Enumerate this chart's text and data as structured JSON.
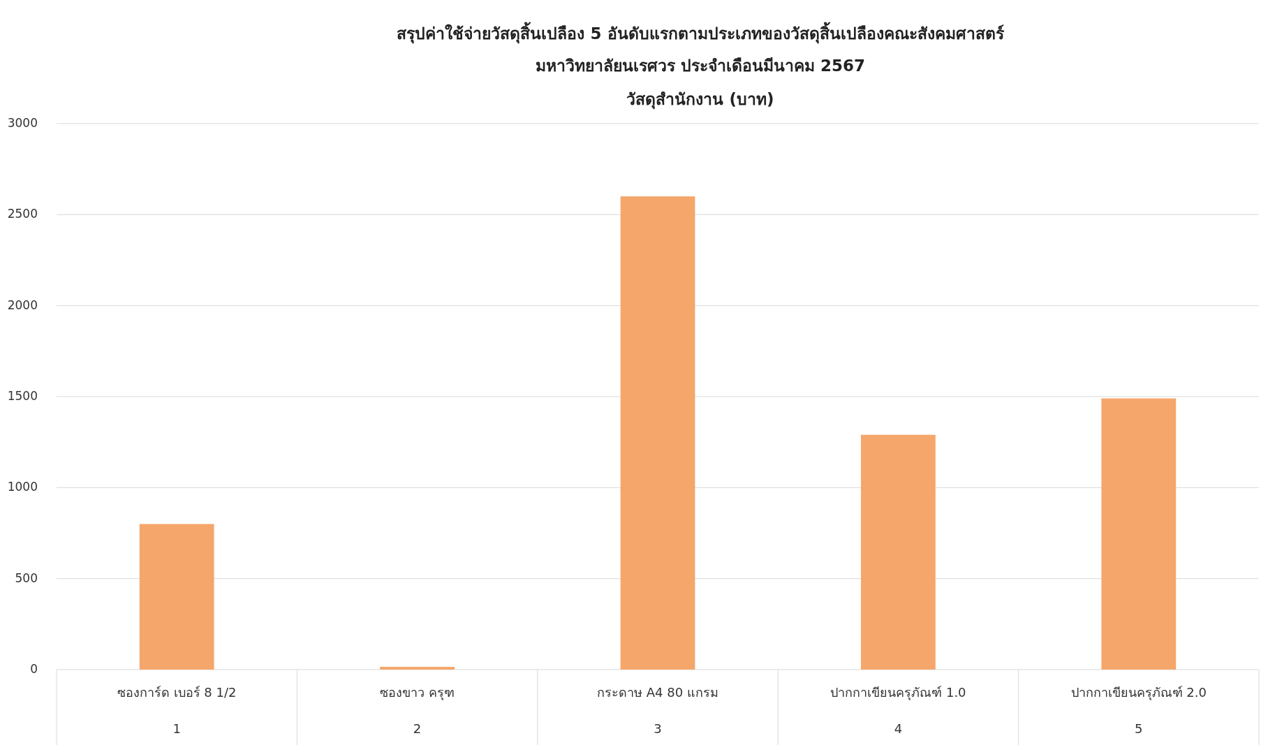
{
  "chart_data": {
    "type": "bar",
    "title": "สรุปค่าใช้จ่ายวัสดุสิ้นเปลือง 5 อันดับแรกตามประเภทของวัสดุสิ้นเปลืองคณะสังคมศาสตร์\nมหาวิทยาลัยนเรศวร ประจำเดือนมีนาคม 2567",
    "subtitle": "วัสดุสำนักงาน (บาท)",
    "categories": [
      "ซองการ์ด เบอร์ 8 1/2\n1",
      "ซองขาว ครุฑ\n2",
      "กระดาษ A4 80 แกรม\n3",
      "ปากกาเขียนครุภัณฑ์ 1.0\n4",
      "ปากกาเขียนครุภัณฑ์ 2.0\n5"
    ],
    "values": [
      800,
      15,
      2600,
      1290,
      1490
    ],
    "color": "#f5a66a",
    "ylim": [
      0,
      3000
    ],
    "yticks": [
      0,
      500,
      1000,
      1500,
      2000,
      2500,
      3000
    ],
    "grid": "y"
  }
}
